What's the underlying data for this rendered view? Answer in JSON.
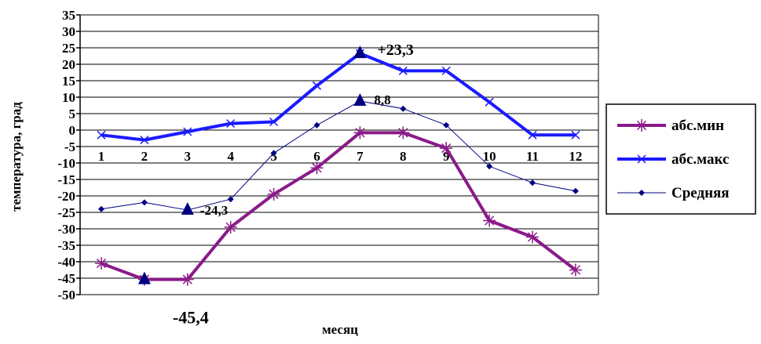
{
  "chart_data": {
    "type": "line",
    "title": "",
    "xlabel": "месяц",
    "ylabel": "температура, град",
    "ylim": [
      -50,
      35
    ],
    "ytick_step": 5,
    "yticks": [
      "35",
      "30",
      "25",
      "20",
      "15",
      "10",
      "5",
      "0",
      "-5",
      "-10",
      "-15",
      "-20",
      "-25",
      "-30",
      "-35",
      "-40",
      "-45",
      "-50"
    ],
    "categories": [
      "1",
      "2",
      "3",
      "4",
      "5",
      "6",
      "7",
      "8",
      "9",
      "10",
      "11",
      "12"
    ],
    "grid": true,
    "legend_position": "right",
    "series": [
      {
        "name": "абс.мин",
        "color": "#8B1A89",
        "marker": "asterisk",
        "values": [
          -40.5,
          -45.4,
          -45.4,
          -29.5,
          -19.5,
          -11.5,
          -0.8,
          -0.8,
          -5.5,
          -27.5,
          -32.5,
          -42.5
        ]
      },
      {
        "name": "абс.макс",
        "color": "#1A1AFF",
        "marker": "x",
        "values": [
          -1.5,
          -3,
          -0.5,
          2,
          2.5,
          13.5,
          23.3,
          18,
          18,
          8.5,
          -1.5,
          -1.5
        ]
      },
      {
        "name": "Средняя",
        "color": "#000080",
        "marker": "diamond",
        "values": [
          -24,
          -22,
          -24.3,
          -21,
          -7,
          1.5,
          8.8,
          6.5,
          1.5,
          -11,
          -16,
          -18.5
        ]
      }
    ],
    "annotations": [
      {
        "text": "+23,3",
        "category": "7",
        "value": 23.3,
        "series": "абс.макс",
        "triangle": true
      },
      {
        "text": "8,8",
        "category": "7",
        "value": 8.8,
        "series": "Средняя",
        "triangle": true
      },
      {
        "text": "-24,3",
        "category": "3",
        "value": -24.3,
        "series": "Средняя",
        "triangle": true
      },
      {
        "text": "-45,4",
        "category": "2",
        "value": -45.4,
        "series": "абс.мин",
        "triangle": true
      }
    ]
  }
}
